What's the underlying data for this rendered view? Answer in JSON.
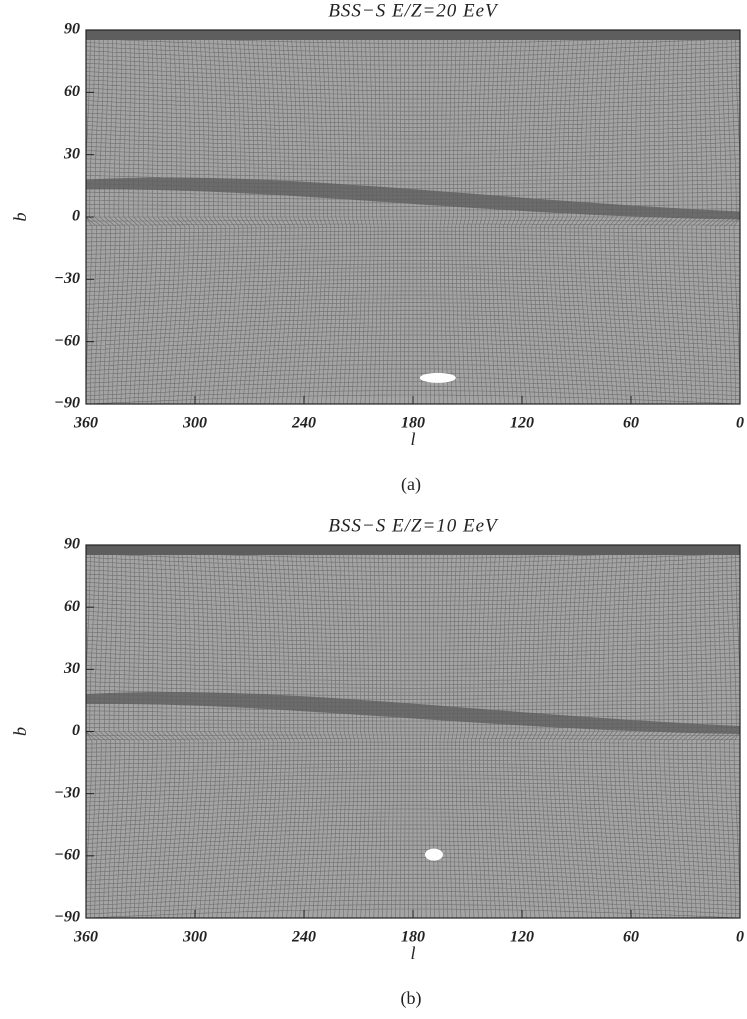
{
  "chart_data": [
    {
      "type": "mesh",
      "title": "BSS−S E/Z=20 EeV",
      "xlabel": "l",
      "ylabel": "b",
      "caption": "(a)",
      "xlim": [
        360,
        0
      ],
      "ylim": [
        -90,
        90
      ],
      "xticks": [
        360,
        300,
        240,
        180,
        120,
        60,
        0
      ],
      "yticks": [
        90,
        60,
        30,
        0,
        {
          "value": -30,
          "label": "−30"
        },
        {
          "value": -60,
          "label": "−60"
        },
        {
          "value": -90,
          "label": "−90"
        }
      ],
      "color": "#6e6e6e"
    },
    {
      "type": "mesh",
      "title": "BSS−S E/Z=10 EeV",
      "xlabel": "l",
      "ylabel": "b",
      "caption": "(b)",
      "xlim": [
        360,
        0
      ],
      "ylim": [
        -90,
        90
      ],
      "xticks": [
        360,
        300,
        240,
        180,
        120,
        60,
        0
      ],
      "yticks": [
        90,
        60,
        30,
        0,
        {
          "value": -30,
          "label": "−30"
        },
        {
          "value": -60,
          "label": "−60"
        },
        {
          "value": -90,
          "label": "−90"
        }
      ],
      "color": "#6e6e6e"
    }
  ]
}
